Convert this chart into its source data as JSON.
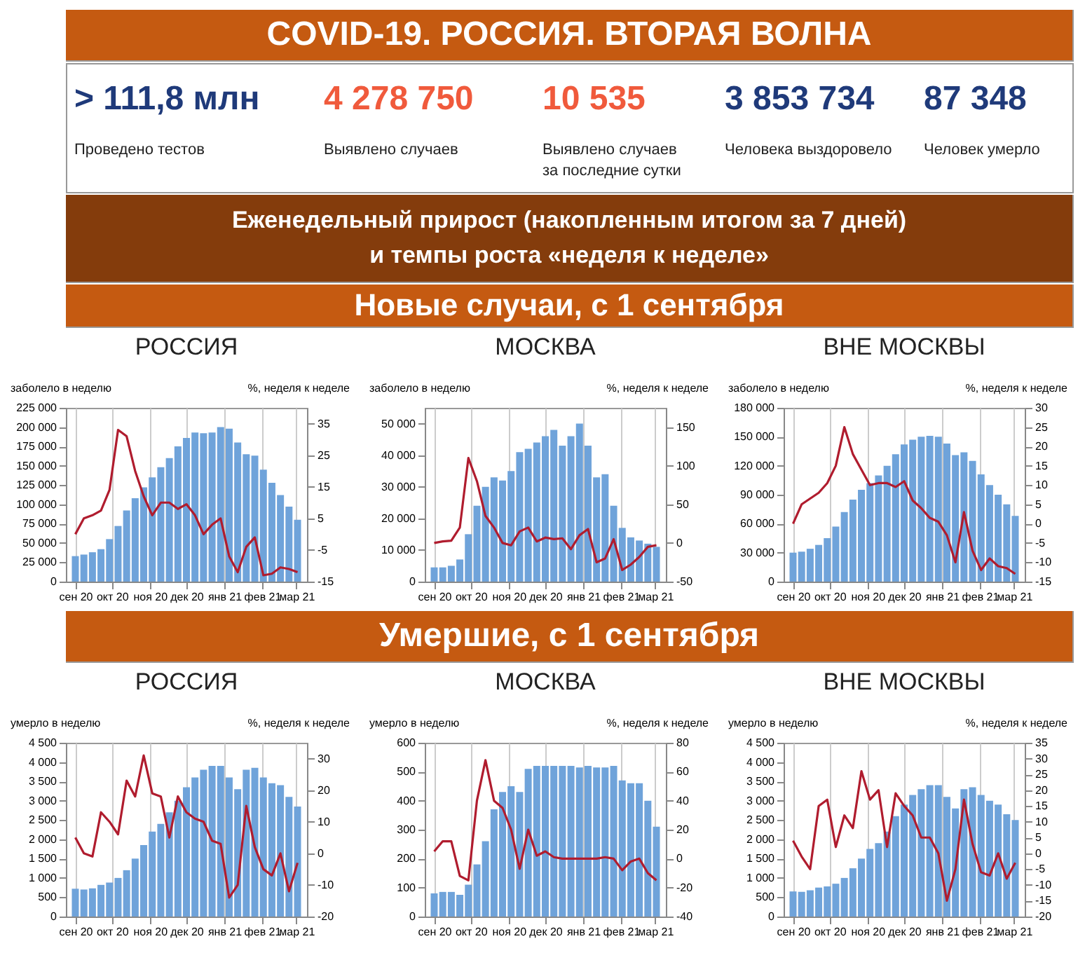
{
  "chart_data": [
    {
      "type": "other",
      "title": "COVID-19. РОССИЯ. ВТОРАЯ ВОЛНА",
      "subtitle": "Еженедельный прирост (накопленным итогом за 7 дней)\nи темпы роста «неделя к неделе»",
      "annotations": [
        "> 111,8 млн",
        "Проведено тестов",
        "4 278 750",
        "Выявлено случаев",
        "10 535",
        "Выявлено случаев\nза последние сутки",
        "3 853 734",
        "Человека выздоровело",
        "87 348",
        "Человек умерло",
        "Новые случаи, с 1 сентября"
      ]
    },
    {
      "type": "bar",
      "title": "РОССИЯ",
      "ylabel": "заболело  в неделю",
      "y2label": "%, неделя к неделе",
      "grid": "x",
      "x": [
        "2020-09-01",
        "2020-09-08",
        "2020-09-15",
        "2020-09-22",
        "2020-09-29",
        "2020-10-06",
        "2020-10-13",
        "2020-10-20",
        "2020-10-27",
        "2020-11-03",
        "2020-11-10",
        "2020-11-17",
        "2020-11-24",
        "2020-12-01",
        "2020-12-08",
        "2020-12-15",
        "2020-12-22",
        "2020-12-29",
        "2021-01-05",
        "2021-01-12",
        "2021-01-19",
        "2021-01-26",
        "2021-02-02",
        "2021-02-09",
        "2021-02-16",
        "2021-02-23",
        "2021-03-02"
      ],
      "xlim": [
        "2020-08-30",
        "2021-03-04"
      ],
      "xticks": [
        {
          "value": "2020-09-01",
          "label": "сен 20"
        },
        {
          "value": "2020-10-01",
          "label": "окт 20"
        },
        {
          "value": "2020-11-01",
          "label": "ноя 20"
        },
        {
          "value": "2020-12-01",
          "label": "дек 20"
        },
        {
          "value": "2021-01-01",
          "label": "янв 21"
        },
        {
          "value": "2021-02-01",
          "label": "фев 21"
        },
        {
          "value": "2021-03-01",
          "label": "мар 21"
        }
      ],
      "ylim": [
        0,
        225000
      ],
      "yticks": [
        0,
        {
          "value": 25000,
          "label": "25 000"
        },
        {
          "value": 50000,
          "label": "50 000"
        },
        {
          "value": 75000,
          "label": "75 000"
        },
        {
          "value": 100000,
          "label": "100 000"
        },
        {
          "value": 125000,
          "label": "125 000"
        },
        {
          "value": 150000,
          "label": "150 000"
        },
        {
          "value": 175000,
          "label": "175 000"
        },
        {
          "value": 200000,
          "label": "200 000"
        },
        {
          "value": 225000,
          "label": "225 000"
        }
      ],
      "y2lim": [
        -15,
        40
      ],
      "y2ticks": [
        -15,
        -5,
        5,
        15,
        25,
        35
      ],
      "series": [
        {
          "type": "bar",
          "color": "#6fa3da",
          "values": [
            33000,
            35000,
            38000,
            42000,
            55000,
            72000,
            92000,
            108000,
            122000,
            135000,
            148000,
            160000,
            175000,
            186000,
            193000,
            192000,
            193000,
            200000,
            198000,
            180000,
            165000,
            163000,
            145000,
            128000,
            112000,
            97000,
            80000
          ]
        },
        {
          "type": "line",
          "axis": "y2",
          "color": "#b01c2e",
          "values": [
            0,
            5,
            6,
            7.5,
            14,
            33,
            31,
            20,
            12,
            6,
            10,
            10,
            8,
            9.5,
            6,
            0,
            3,
            5,
            -7,
            -12,
            -4,
            -1,
            -13,
            -12.5,
            -10.5,
            -11,
            -12
          ]
        }
      ]
    },
    {
      "type": "bar",
      "title": "МОСКВА",
      "ylabel": "заболело в неделю",
      "y2label": "%, неделя к неделе",
      "grid": "x",
      "x": [
        "2020-09-01",
        "2020-09-08",
        "2020-09-15",
        "2020-09-22",
        "2020-09-29",
        "2020-10-06",
        "2020-10-13",
        "2020-10-20",
        "2020-10-27",
        "2020-11-03",
        "2020-11-10",
        "2020-11-17",
        "2020-11-24",
        "2020-12-01",
        "2020-12-08",
        "2020-12-15",
        "2020-12-22",
        "2020-12-29",
        "2021-01-05",
        "2021-01-12",
        "2021-01-19",
        "2021-01-26",
        "2021-02-02",
        "2021-02-09",
        "2021-02-16",
        "2021-02-23",
        "2021-03-02"
      ],
      "xlim": [
        "2020-08-30",
        "2021-03-04"
      ],
      "xticks": [
        {
          "value": "2020-09-01",
          "label": "сен 20"
        },
        {
          "value": "2020-10-01",
          "label": "окт 20"
        },
        {
          "value": "2020-11-01",
          "label": "ноя 20"
        },
        {
          "value": "2020-12-01",
          "label": "дек 20"
        },
        {
          "value": "2021-01-01",
          "label": "янв 21"
        },
        {
          "value": "2021-02-01",
          "label": "фев 21"
        },
        {
          "value": "2021-03-01",
          "label": "мар 21"
        }
      ],
      "ylim": [
        0,
        55000
      ],
      "yticks": [
        0,
        {
          "value": 10000,
          "label": "10 000"
        },
        {
          "value": 20000,
          "label": "20 000"
        },
        {
          "value": 30000,
          "label": "30 000"
        },
        {
          "value": 40000,
          "label": "40 000"
        },
        {
          "value": 50000,
          "label": "50 000"
        }
      ],
      "y2lim": [
        -50,
        175
      ],
      "y2ticks": [
        -50,
        0,
        50,
        100,
        150
      ],
      "series": [
        {
          "type": "bar",
          "color": "#6fa3da",
          "values": [
            4500,
            4500,
            5000,
            7000,
            15000,
            24000,
            30000,
            33000,
            32000,
            35000,
            41000,
            42000,
            44000,
            46000,
            48000,
            43000,
            46000,
            50000,
            43000,
            33000,
            34000,
            24000,
            17000,
            14000,
            13000,
            12000,
            11000
          ]
        },
        {
          "type": "line",
          "axis": "y2",
          "color": "#b01c2e",
          "values": [
            0,
            2,
            3,
            20,
            110,
            80,
            35,
            20,
            0,
            -3,
            15,
            20,
            2,
            7,
            5,
            6,
            -8,
            10,
            18,
            -25,
            -20,
            5,
            -35,
            -28,
            -18,
            -5,
            -3
          ]
        }
      ]
    },
    {
      "type": "bar",
      "title": "ВНЕ МОСКВЫ",
      "ylabel": "заболело в неделю",
      "y2label": "%, неделя к неделе",
      "grid": "x",
      "x": [
        "2020-09-01",
        "2020-09-08",
        "2020-09-15",
        "2020-09-22",
        "2020-09-29",
        "2020-10-06",
        "2020-10-13",
        "2020-10-20",
        "2020-10-27",
        "2020-11-03",
        "2020-11-10",
        "2020-11-17",
        "2020-11-24",
        "2020-12-01",
        "2020-12-08",
        "2020-12-15",
        "2020-12-22",
        "2020-12-29",
        "2021-01-05",
        "2021-01-12",
        "2021-01-19",
        "2021-01-26",
        "2021-02-02",
        "2021-02-09",
        "2021-02-16",
        "2021-02-23",
        "2021-03-02"
      ],
      "xlim": [
        "2020-08-30",
        "2021-03-04"
      ],
      "xticks": [
        {
          "value": "2020-09-01",
          "label": "сен 20"
        },
        {
          "value": "2020-10-01",
          "label": "окт 20"
        },
        {
          "value": "2020-11-01",
          "label": "ноя 20"
        },
        {
          "value": "2020-12-01",
          "label": "дек 20"
        },
        {
          "value": "2021-01-01",
          "label": "янв 21"
        },
        {
          "value": "2021-02-01",
          "label": "фев 21"
        },
        {
          "value": "2021-03-01",
          "label": "мар 21"
        }
      ],
      "ylim": [
        0,
        180000
      ],
      "yticks": [
        0,
        {
          "value": 30000,
          "label": "30 000"
        },
        {
          "value": 60000,
          "label": "60 000"
        },
        {
          "value": 90000,
          "label": "90 000"
        },
        {
          "value": 120000,
          "label": "120 000"
        },
        {
          "value": 150000,
          "label": "150 000"
        },
        {
          "value": 180000,
          "label": "180 000"
        }
      ],
      "y2lim": [
        -15,
        30
      ],
      "y2ticks": [
        -15,
        -10,
        -5,
        0,
        5,
        10,
        15,
        20,
        25,
        30
      ],
      "series": [
        {
          "type": "bar",
          "color": "#6fa3da",
          "values": [
            30000,
            31000,
            34000,
            38000,
            45000,
            57000,
            72000,
            85000,
            95000,
            102000,
            110000,
            120000,
            132000,
            142000,
            147000,
            150000,
            151000,
            150000,
            143000,
            131000,
            134000,
            125000,
            111000,
            100000,
            90000,
            80000,
            68000
          ]
        },
        {
          "type": "line",
          "axis": "y2",
          "color": "#b01c2e",
          "values": [
            0,
            5,
            6.5,
            8,
            10.5,
            15,
            25,
            18,
            14,
            10,
            10.5,
            10.5,
            9.5,
            11,
            6,
            4,
            1.5,
            0.5,
            -3,
            -10,
            3,
            -7,
            -12,
            -9,
            -11,
            -11.5,
            -13
          ]
        }
      ]
    },
    {
      "type": "other",
      "title": "Умершие, с 1 сентября"
    },
    {
      "type": "bar",
      "title": "РОССИЯ",
      "ylabel": "умерло в неделю",
      "y2label": "%, неделя к неделе",
      "grid": "x",
      "x": [
        "2020-09-01",
        "2020-09-08",
        "2020-09-15",
        "2020-09-22",
        "2020-09-29",
        "2020-10-06",
        "2020-10-13",
        "2020-10-20",
        "2020-10-27",
        "2020-11-03",
        "2020-11-10",
        "2020-11-17",
        "2020-11-24",
        "2020-12-01",
        "2020-12-08",
        "2020-12-15",
        "2020-12-22",
        "2020-12-29",
        "2021-01-05",
        "2021-01-12",
        "2021-01-19",
        "2021-01-26",
        "2021-02-02",
        "2021-02-09",
        "2021-02-16",
        "2021-02-23",
        "2021-03-02"
      ],
      "xlim": [
        "2020-08-30",
        "2021-03-04"
      ],
      "xticks": [
        {
          "value": "2020-09-01",
          "label": "сен 20"
        },
        {
          "value": "2020-10-01",
          "label": "окт 20"
        },
        {
          "value": "2020-11-01",
          "label": "ноя 20"
        },
        {
          "value": "2020-12-01",
          "label": "дек 20"
        },
        {
          "value": "2021-01-01",
          "label": "янв 21"
        },
        {
          "value": "2021-02-01",
          "label": "фев 21"
        },
        {
          "value": "2021-03-01",
          "label": "мар 21"
        }
      ],
      "ylim": [
        0,
        4500
      ],
      "yticks": [
        0,
        500,
        {
          "value": 1000,
          "label": "1 000"
        },
        {
          "value": 1500,
          "label": "1 500"
        },
        {
          "value": 2000,
          "label": "2 000"
        },
        {
          "value": 2500,
          "label": "2 500"
        },
        {
          "value": 3000,
          "label": "3 000"
        },
        {
          "value": 3500,
          "label": "3 500"
        },
        {
          "value": 4000,
          "label": "4 000"
        },
        {
          "value": 4500,
          "label": "4 500"
        }
      ],
      "y2lim": [
        -20,
        35
      ],
      "y2ticks": [
        -20,
        -10,
        0,
        10,
        20,
        30
      ],
      "series": [
        {
          "type": "bar",
          "color": "#6fa3da",
          "values": [
            720,
            700,
            730,
            820,
            880,
            1000,
            1200,
            1500,
            1850,
            2200,
            2400,
            2700,
            3000,
            3350,
            3600,
            3800,
            3900,
            3900,
            3600,
            3300,
            3800,
            3850,
            3600,
            3450,
            3400,
            3100,
            2850
          ]
        },
        {
          "type": "line",
          "axis": "y2",
          "color": "#b01c2e",
          "values": [
            5,
            0,
            -1,
            13,
            10,
            6,
            23,
            18,
            31,
            19,
            18,
            5,
            18,
            13,
            11,
            10,
            4,
            3,
            -14,
            -10,
            15,
            2,
            -5,
            -7,
            0,
            -12,
            -3
          ]
        }
      ]
    },
    {
      "type": "bar",
      "title": "МОСКВА",
      "ylabel": "умерло в неделю",
      "y2label": "%, неделя к неделе",
      "grid": "x",
      "x": [
        "2020-09-01",
        "2020-09-08",
        "2020-09-15",
        "2020-09-22",
        "2020-09-29",
        "2020-10-06",
        "2020-10-13",
        "2020-10-20",
        "2020-10-27",
        "2020-11-03",
        "2020-11-10",
        "2020-11-17",
        "2020-11-24",
        "2020-12-01",
        "2020-12-08",
        "2020-12-15",
        "2020-12-22",
        "2020-12-29",
        "2021-01-05",
        "2021-01-12",
        "2021-01-19",
        "2021-01-26",
        "2021-02-02",
        "2021-02-09",
        "2021-02-16",
        "2021-02-23",
        "2021-03-02"
      ],
      "xlim": [
        "2020-08-30",
        "2021-03-04"
      ],
      "xticks": [
        {
          "value": "2020-09-01",
          "label": "сен 20"
        },
        {
          "value": "2020-10-01",
          "label": "окт 20"
        },
        {
          "value": "2020-11-01",
          "label": "ноя 20"
        },
        {
          "value": "2020-12-01",
          "label": "дек 20"
        },
        {
          "value": "2021-01-01",
          "label": "янв 21"
        },
        {
          "value": "2021-02-01",
          "label": "фев 21"
        },
        {
          "value": "2021-03-01",
          "label": "мар 21"
        }
      ],
      "ylim": [
        0,
        600
      ],
      "yticks": [
        0,
        100,
        200,
        300,
        400,
        500,
        600
      ],
      "y2lim": [
        -40,
        80
      ],
      "y2ticks": [
        -40,
        -20,
        0,
        20,
        40,
        60,
        80
      ],
      "series": [
        {
          "type": "bar",
          "color": "#6fa3da",
          "values": [
            80,
            85,
            85,
            75,
            110,
            180,
            260,
            370,
            430,
            450,
            430,
            510,
            520,
            520,
            520,
            520,
            520,
            515,
            520,
            515,
            515,
            520,
            470,
            460,
            460,
            400,
            310
          ]
        },
        {
          "type": "line",
          "axis": "y2",
          "color": "#b01c2e",
          "values": [
            5,
            12,
            12,
            -12,
            -15,
            40,
            68,
            40,
            35,
            20,
            -7,
            20,
            2,
            5,
            1,
            0,
            0,
            0,
            0,
            0,
            1,
            0,
            -8,
            -2,
            0,
            -10,
            -15
          ]
        }
      ]
    },
    {
      "type": "bar",
      "title": "ВНЕ МОСКВЫ",
      "ylabel": "умерло в неделю",
      "y2label": "%, неделя к неделе",
      "grid": "x",
      "x": [
        "2020-09-01",
        "2020-09-08",
        "2020-09-15",
        "2020-09-22",
        "2020-09-29",
        "2020-10-06",
        "2020-10-13",
        "2020-10-20",
        "2020-10-27",
        "2020-11-03",
        "2020-11-10",
        "2020-11-17",
        "2020-11-24",
        "2020-12-01",
        "2020-12-08",
        "2020-12-15",
        "2020-12-22",
        "2020-12-29",
        "2021-01-05",
        "2021-01-12",
        "2021-01-19",
        "2021-01-26",
        "2021-02-02",
        "2021-02-09",
        "2021-02-16",
        "2021-02-23",
        "2021-03-02"
      ],
      "xlim": [
        "2020-08-30",
        "2021-03-04"
      ],
      "xticks": [
        {
          "value": "2020-09-01",
          "label": "сен 20"
        },
        {
          "value": "2020-10-01",
          "label": "окт 20"
        },
        {
          "value": "2020-11-01",
          "label": "ноя 20"
        },
        {
          "value": "2020-12-01",
          "label": "дек 20"
        },
        {
          "value": "2021-01-01",
          "label": "янв 21"
        },
        {
          "value": "2021-02-01",
          "label": "фев 21"
        },
        {
          "value": "2021-03-01",
          "label": "мар 21"
        }
      ],
      "ylim": [
        0,
        4500
      ],
      "yticks": [
        0,
        500,
        {
          "value": 1000,
          "label": "1 000"
        },
        {
          "value": 1500,
          "label": "1 500"
        },
        {
          "value": 2000,
          "label": "2 000"
        },
        {
          "value": 2500,
          "label": "2 500"
        },
        {
          "value": 3000,
          "label": "3 000"
        },
        {
          "value": 3500,
          "label": "3 500"
        },
        {
          "value": 4000,
          "label": "4 000"
        },
        {
          "value": 4500,
          "label": "4 500"
        }
      ],
      "y2lim": [
        -20,
        35
      ],
      "y2ticks": [
        -20,
        -15,
        -10,
        -5,
        0,
        5,
        10,
        15,
        20,
        25,
        30,
        35
      ],
      "series": [
        {
          "type": "bar",
          "color": "#6fa3da",
          "values": [
            650,
            640,
            680,
            750,
            780,
            850,
            1000,
            1250,
            1500,
            1750,
            1900,
            2200,
            2600,
            2900,
            3150,
            3300,
            3400,
            3400,
            3100,
            2800,
            3300,
            3350,
            3150,
            3000,
            2900,
            2650,
            2500
          ]
        },
        {
          "type": "line",
          "axis": "y2",
          "color": "#b01c2e",
          "values": [
            4,
            -1,
            -5,
            15,
            17,
            2,
            12,
            8,
            26,
            17,
            20,
            2,
            19,
            15,
            12,
            5,
            5,
            0,
            -15,
            -5,
            17,
            3,
            -6,
            -7,
            0,
            -8,
            -3
          ]
        }
      ]
    }
  ]
}
